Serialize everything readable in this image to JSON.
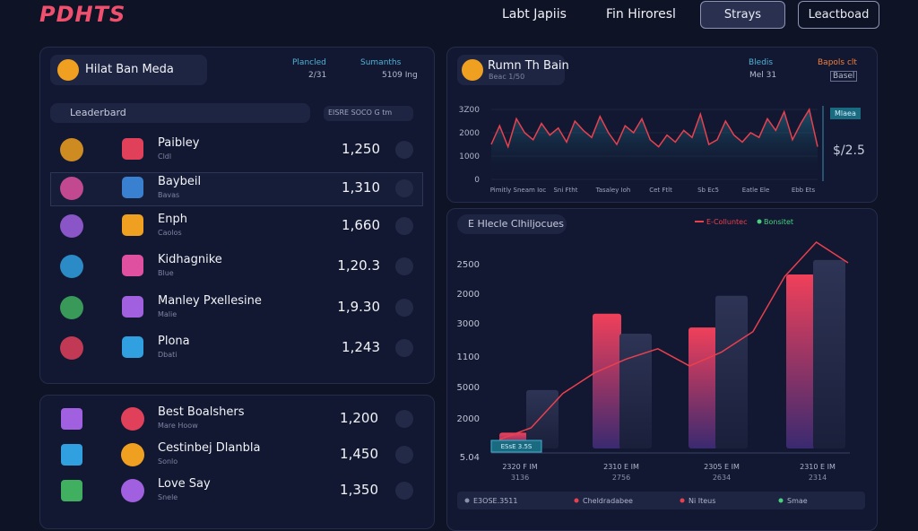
{
  "header": {
    "logo": "PDHTS",
    "nav": [
      "Labt Japiis",
      "Fin Hiroresl"
    ],
    "buttons": [
      "Strays",
      "Leactboad"
    ]
  },
  "profile": {
    "title": "Hilat Ban Meda",
    "stats": [
      {
        "label": "Plancled",
        "value": "2/31"
      },
      {
        "label": "Sumanths",
        "value": "5109 Ing"
      }
    ]
  },
  "leaderboard": {
    "title": "Leaderbard",
    "filter": "EISRE SOCO G tm",
    "rows": [
      {
        "name": "Paibley",
        "sub": "Cldl",
        "score": "1,250"
      },
      {
        "name": "Baybeil",
        "sub": "Bavas",
        "score": "1,310"
      },
      {
        "name": "Enph",
        "sub": "Caolos",
        "score": "1,660"
      },
      {
        "name": "Kidhagnike",
        "sub": "Blue",
        "score": "1,20.3"
      },
      {
        "name": "Manley Pxellesine",
        "sub": "Malie",
        "score": "1,9.30"
      },
      {
        "name": "Plona",
        "sub": "Dbati",
        "score": "1,243"
      }
    ]
  },
  "featured": {
    "rows": [
      {
        "name": "Best Boalshers",
        "sub": "Mare Hoow",
        "score": "1,200"
      },
      {
        "name": "Cestinbej Dlanbla",
        "sub": "Sonlo",
        "score": "1,450"
      },
      {
        "name": "Love Say",
        "sub": "Snele",
        "score": "1,350"
      }
    ]
  },
  "trend": {
    "title": "Rumn Th Bain",
    "subtitle": "Beac 1/50",
    "stats": [
      {
        "label": "Bledis",
        "value": "Mel 31"
      },
      {
        "label": "Bapols clt",
        "value": "Basel"
      }
    ],
    "badge": "Mlaea",
    "current": "$/2.5",
    "color": "#e8404e",
    "ylim": [
      0,
      3000
    ],
    "yticks": [
      {
        "value": 3000,
        "label": "3Z00"
      },
      2000,
      1000,
      0
    ],
    "x_labels": [
      "Pimitly Sneam Ioc",
      "Sni Ftht",
      "Tasaley Ioh",
      "Cet Ftlt",
      "Sb Ec5",
      "Eatle Ele",
      "Ebb Ets"
    ],
    "values": [
      1500,
      2300,
      1400,
      2600,
      2000,
      1700,
      2400,
      1900,
      2200,
      1600,
      2500,
      2100,
      1800,
      2700,
      2000,
      1500,
      2300,
      2000,
      2600,
      1700,
      1400,
      1900,
      1600,
      2100,
      1800,
      2800,
      1500,
      1700,
      2500,
      1900,
      1600,
      2000,
      1800,
      2600,
      2100,
      2900,
      1700,
      2400,
      3000,
      1400
    ]
  },
  "challenges": {
    "title": "E Hlecle Clhiljocues",
    "ylim": [
      0,
      3000
    ],
    "axis_labels": [
      "2500",
      "2000",
      "3000",
      "1100",
      "5000",
      "2000",
      "5.04"
    ],
    "series": [
      {
        "name": "E-Colluntec",
        "color": "#e8404e",
        "values": [
          230,
          1960,
          1760,
          2530
        ]
      },
      {
        "name": "Bonsitet",
        "color": "#2a3050",
        "values": [
          850,
          1670,
          2220,
          2740
        ]
      }
    ],
    "line": {
      "color": "#e8404e",
      "values": [
        130,
        300,
        800,
        1100,
        1300,
        1450,
        1200,
        1400,
        1700,
        2500,
        3000,
        2700
      ]
    },
    "x_labels": [
      {
        "top": "2320 F IM",
        "bottom": "3136"
      },
      {
        "top": "2310 E IM",
        "bottom": "2756"
      },
      {
        "top": "2305 E IM",
        "bottom": "2634"
      },
      {
        "top": "2310 E IM",
        "bottom": "2314"
      }
    ],
    "tag": "ESsE 3.5S",
    "footer": [
      "E3OSE.3511",
      "Cheldradabee",
      "Ni Iteus",
      "Smae"
    ]
  }
}
